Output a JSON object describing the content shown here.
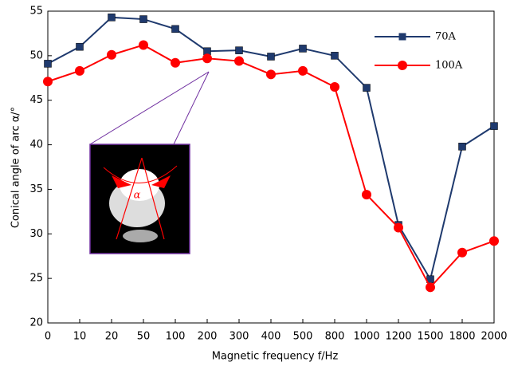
{
  "chart_data": {
    "type": "line",
    "x_label": "Magnetic frequency    f/Hz",
    "y_label": "Conical angle of arc    α/°",
    "categories": [
      "0",
      "10",
      "20",
      "50",
      "100",
      "200",
      "300",
      "400",
      "500",
      "800",
      "1000",
      "1200",
      "1500",
      "1800",
      "2000"
    ],
    "series": [
      {
        "name": "70A",
        "color": "#1f3a6e",
        "marker": "square",
        "values": [
          49.1,
          51.0,
          54.3,
          54.1,
          53.0,
          50.5,
          50.6,
          49.9,
          50.8,
          50.0,
          46.4,
          31.0,
          24.9,
          39.8,
          42.1
        ]
      },
      {
        "name": "100A",
        "color": "#ff0000",
        "marker": "circle",
        "values": [
          47.1,
          48.3,
          50.1,
          51.2,
          49.2,
          49.7,
          49.4,
          47.9,
          48.3,
          46.5,
          34.4,
          30.7,
          24.0,
          27.9,
          29.2
        ]
      }
    ],
    "ylim": [
      20,
      55
    ],
    "yticks": [
      20,
      25,
      30,
      35,
      40,
      45,
      50,
      55
    ],
    "inset_label": "α"
  }
}
